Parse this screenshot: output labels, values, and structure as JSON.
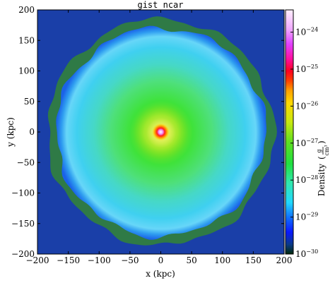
{
  "chart_data": {
    "type": "heatmap",
    "title": "gist_ncar",
    "xlabel": "x (kpc)",
    "ylabel": "y (kpc)",
    "xlim": [
      -200,
      200
    ],
    "ylim": [
      -200,
      200
    ],
    "x_ticks": [
      "−200",
      "−150",
      "−100",
      "−50",
      "0",
      "50",
      "100",
      "150",
      "200"
    ],
    "y_ticks": [
      "−200",
      "−150",
      "−100",
      "−50",
      "0",
      "50",
      "100",
      "150",
      "200"
    ],
    "x_tick_values": [
      -200,
      -150,
      -100,
      -50,
      0,
      50,
      100,
      150,
      200
    ],
    "y_tick_values": [
      -200,
      -150,
      -100,
      -50,
      0,
      50,
      100,
      150,
      200
    ],
    "colormap": "gist_ncar",
    "colorbar": {
      "label_prefix": "Density",
      "label_num": "g",
      "label_den": "cm³",
      "scale": "log",
      "range": [
        1e-30,
        4e-24
      ],
      "ticks": [
        {
          "value": 1e-24,
          "mantissa": "10",
          "exp": "−24"
        },
        {
          "value": 1e-25,
          "mantissa": "10",
          "exp": "−25"
        },
        {
          "value": 1e-26,
          "mantissa": "10",
          "exp": "−26"
        },
        {
          "value": 1e-27,
          "mantissa": "10",
          "exp": "−27"
        },
        {
          "value": 1e-28,
          "mantissa": "10",
          "exp": "−28"
        },
        {
          "value": 1e-29,
          "mantissa": "10",
          "exp": "−29"
        },
        {
          "value": 1e-30,
          "mantissa": "10",
          "exp": "−30"
        }
      ]
    },
    "structure": {
      "center": [
        0,
        0
      ],
      "halo_radius_kpc": 175,
      "background_density": 3e-30,
      "center_density": 4e-24
    }
  }
}
